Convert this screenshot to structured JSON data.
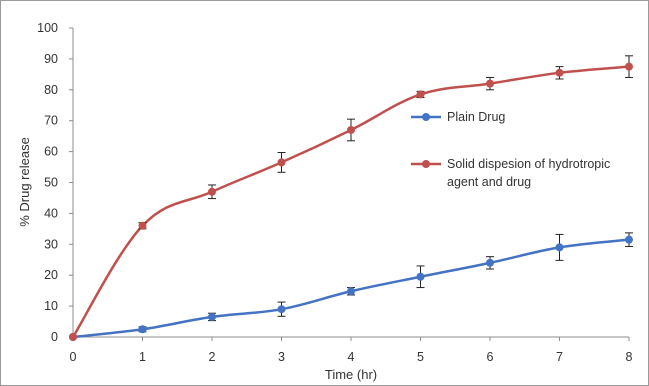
{
  "chart_data": {
    "type": "line",
    "title": "",
    "xlabel": "Time (hr)",
    "ylabel": "% Drug release",
    "xlim": [
      0,
      8
    ],
    "ylim": [
      0,
      100
    ],
    "x_ticks": [
      "0",
      "1",
      "2",
      "3",
      "4",
      "5",
      "6",
      "7",
      "8"
    ],
    "y_ticks": [
      "0",
      "10",
      "20",
      "30",
      "40",
      "50",
      "60",
      "70",
      "80",
      "90",
      "100"
    ],
    "grid": false,
    "legend_position": "right",
    "x": [
      0,
      1,
      2,
      3,
      4,
      5,
      6,
      7,
      8
    ],
    "series": [
      {
        "name": "Plain Drug",
        "color": "#4472C4",
        "values": [
          0,
          2.5,
          6.5,
          9,
          14.8,
          19.5,
          24,
          29,
          31.5
        ],
        "errors": [
          0,
          0.8,
          1.2,
          2.3,
          1.2,
          3.5,
          2.0,
          4.2,
          2.2
        ]
      },
      {
        "name": "Solid dispesion of hydrotropic agent and drug",
        "legend_lines": [
          "Solid dispesion of hydrotropic",
          "agent and drug"
        ],
        "color": "#C0504D",
        "values": [
          0,
          36,
          47,
          56.5,
          67,
          78.5,
          82,
          85.5,
          87.5
        ],
        "errors": [
          0,
          1.0,
          2.2,
          3.2,
          3.5,
          1.0,
          2.0,
          2.0,
          3.5
        ]
      }
    ]
  }
}
